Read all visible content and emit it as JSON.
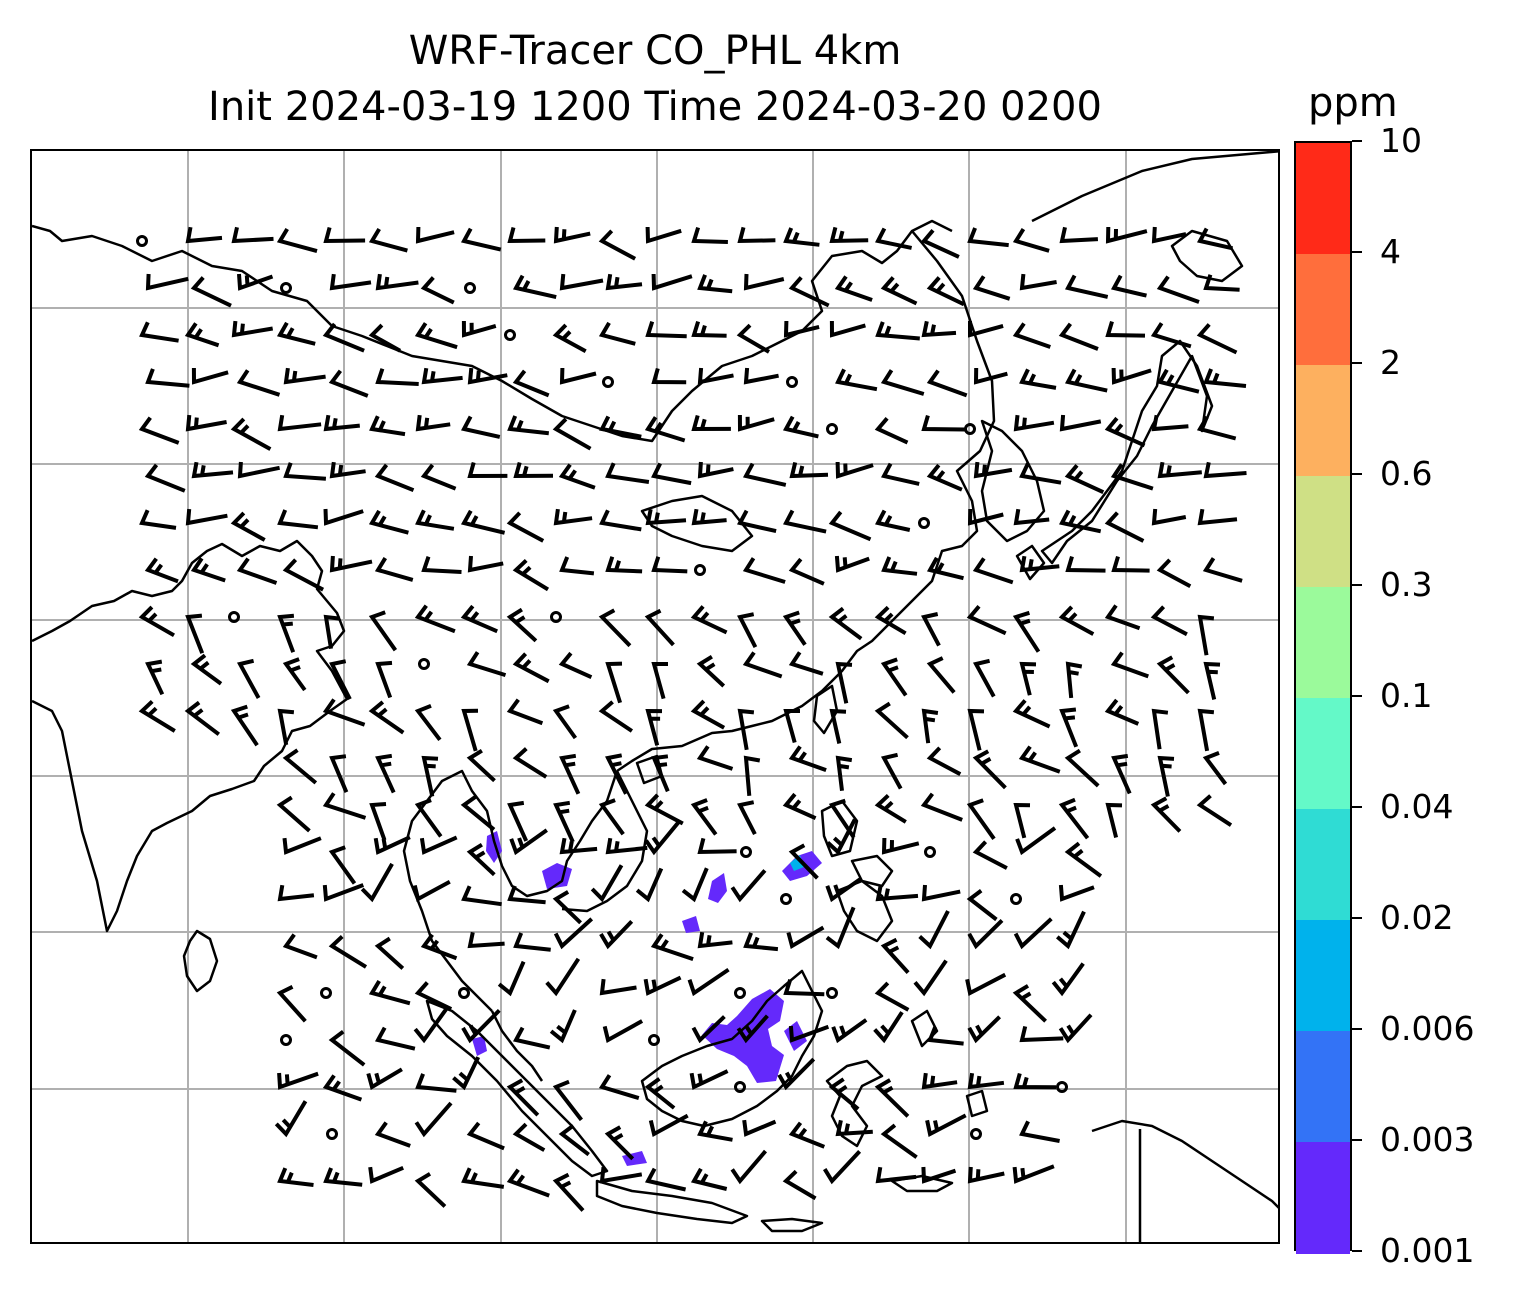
{
  "title": {
    "line1": "WRF-Tracer CO_PHL 4km",
    "line2": "Init 2024-03-19 1200 Time 2024-03-20 0200"
  },
  "colorbar": {
    "unit": "ppm",
    "labels": [
      "10",
      "4",
      "2",
      "0.6",
      "0.3",
      "0.1",
      "0.04",
      "0.02",
      "0.006",
      "0.003",
      "0.001"
    ],
    "colors": [
      "#ff2a18",
      "#ff6e3c",
      "#fdb05f",
      "#cfe085",
      "#9bfa9b",
      "#64f9c8",
      "#2fdcd4",
      "#00b2ec",
      "#3373f6",
      "#6429fb"
    ]
  },
  "map": {
    "gridlines_color": "#b0b0b0",
    "coastline_color": "#000000",
    "tracer_color": "#6429fb",
    "tracer_high_color": "#00b2ec"
  }
}
